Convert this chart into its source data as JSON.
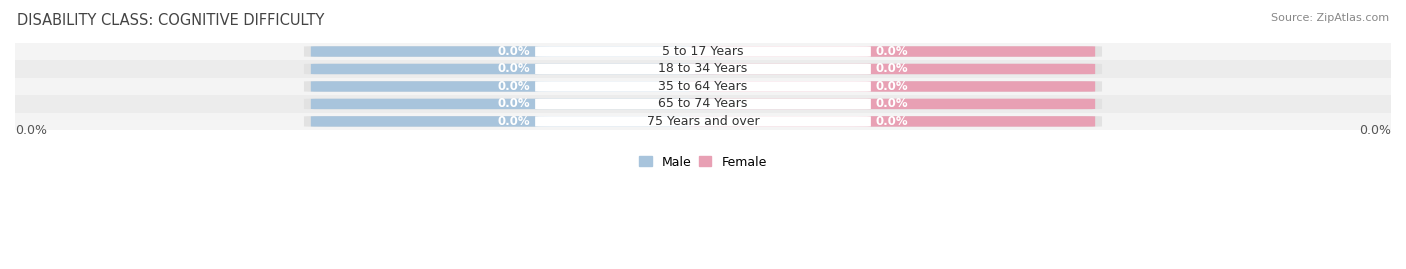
{
  "title": "DISABILITY CLASS: COGNITIVE DIFFICULTY",
  "source": "Source: ZipAtlas.com",
  "categories": [
    "5 to 17 Years",
    "18 to 34 Years",
    "35 to 64 Years",
    "65 to 74 Years",
    "75 Years and over"
  ],
  "male_values": [
    0.0,
    0.0,
    0.0,
    0.0,
    0.0
  ],
  "female_values": [
    0.0,
    0.0,
    0.0,
    0.0,
    0.0
  ],
  "male_color": "#a8c4dc",
  "female_color": "#e8a0b4",
  "bar_bg_color": "#e2e2e2",
  "row_bg_light": "#f4f4f4",
  "row_bg_dark": "#ececec",
  "xlim_left": "0.0%",
  "xlim_right": "0.0%",
  "legend_male": "Male",
  "legend_female": "Female",
  "title_fontsize": 10.5,
  "source_fontsize": 8,
  "axis_label_fontsize": 9,
  "category_fontsize": 9,
  "value_badge_fontsize": 8.5
}
